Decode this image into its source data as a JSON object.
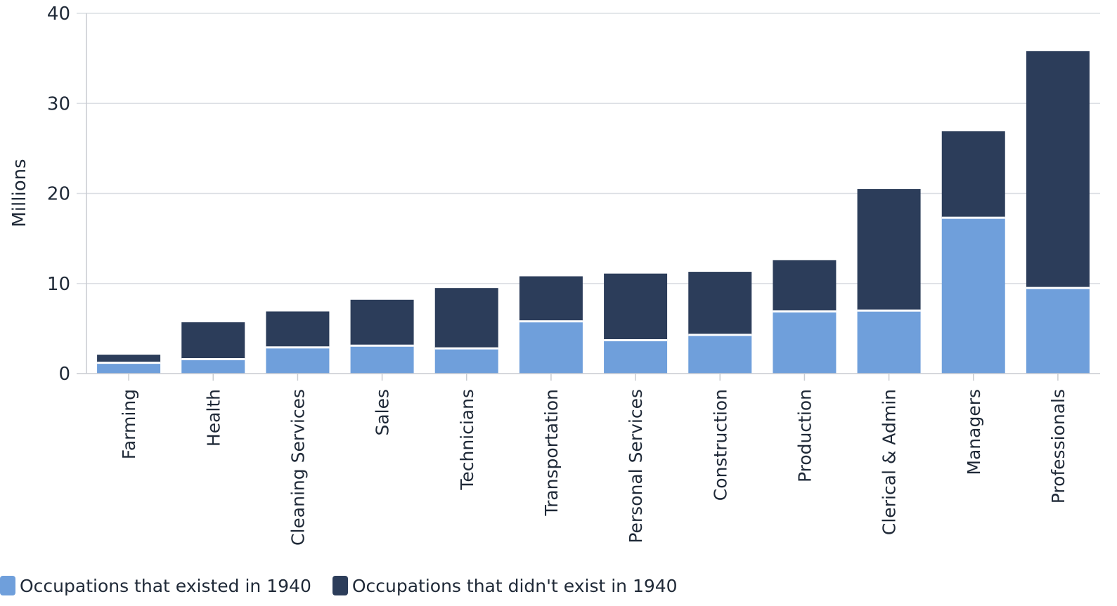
{
  "chart_data": {
    "type": "bar",
    "stacked": true,
    "title": "",
    "xlabel": "",
    "ylabel": "Millions",
    "ylim": [
      0,
      40
    ],
    "yticks": [
      0,
      10,
      20,
      30,
      40
    ],
    "grid": true,
    "legend_position": "bottom-left",
    "categories": [
      "Farming",
      "Health",
      "Cleaning Services",
      "Sales",
      "Technicians",
      "Transportation",
      "Personal Services",
      "Construction",
      "Production",
      "Clerical & Admin",
      "Managers",
      "Professionals"
    ],
    "series": [
      {
        "name": "Occupations that existed in 1940",
        "color": "#6f9fdb",
        "values": [
          1.2,
          1.6,
          2.9,
          3.1,
          2.8,
          5.8,
          3.7,
          4.3,
          6.9,
          7.0,
          17.3,
          9.5
        ]
      },
      {
        "name": "Occupations that didn't exist in 1940",
        "color": "#2c3d5a",
        "values": [
          0.9,
          4.1,
          4.0,
          5.1,
          6.7,
          5.0,
          7.4,
          7.0,
          5.7,
          13.5,
          9.6,
          26.3
        ]
      }
    ]
  },
  "colors": {
    "grid": "#dcdfe4",
    "axis": "#c9ccd1",
    "text": "#1f2937"
  }
}
